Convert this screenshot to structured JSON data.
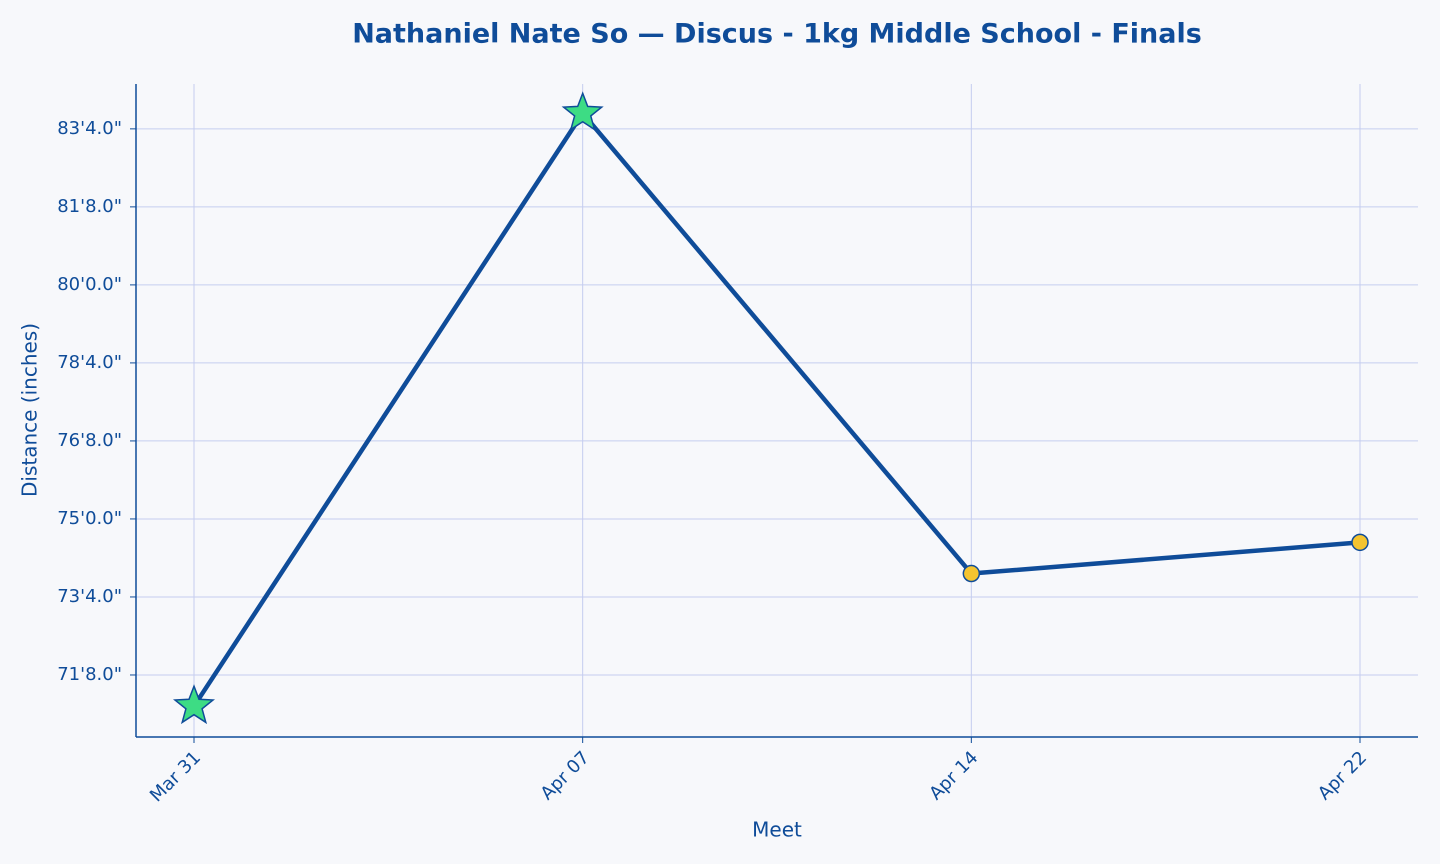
{
  "chart_data": {
    "type": "line",
    "title": "Nathaniel Nate So — Discus - 1kg Middle School - Finals",
    "x_label": "Meet",
    "y_label": "Distance (inches)",
    "categories": [
      "Mar 31",
      "Apr 07",
      "Apr 14",
      "Apr 22"
    ],
    "series": [
      {
        "name": "Distance",
        "color": "#0f4c99",
        "values": [
          852,
          1004,
          886,
          894
        ],
        "markers": [
          "star",
          "star",
          "circle",
          "circle"
        ],
        "marker_colors": [
          "#3ddc84",
          "#3ddc84",
          "#f4c430",
          "#f4c430"
        ]
      }
    ],
    "ylim": [
      844.1,
      1011.5
    ],
    "yticks": [
      {
        "value": 860,
        "label": "71'8.0\""
      },
      {
        "value": 880,
        "label": "73'4.0\""
      },
      {
        "value": 900,
        "label": "75'0.0\""
      },
      {
        "value": 920,
        "label": "76'8.0\""
      },
      {
        "value": 940,
        "label": "78'4.0\""
      },
      {
        "value": 960,
        "label": "80'0.0\""
      },
      {
        "value": 980,
        "label": "81'8.0\""
      },
      {
        "value": 1000,
        "label": "83'4.0\""
      }
    ],
    "grid": true
  }
}
